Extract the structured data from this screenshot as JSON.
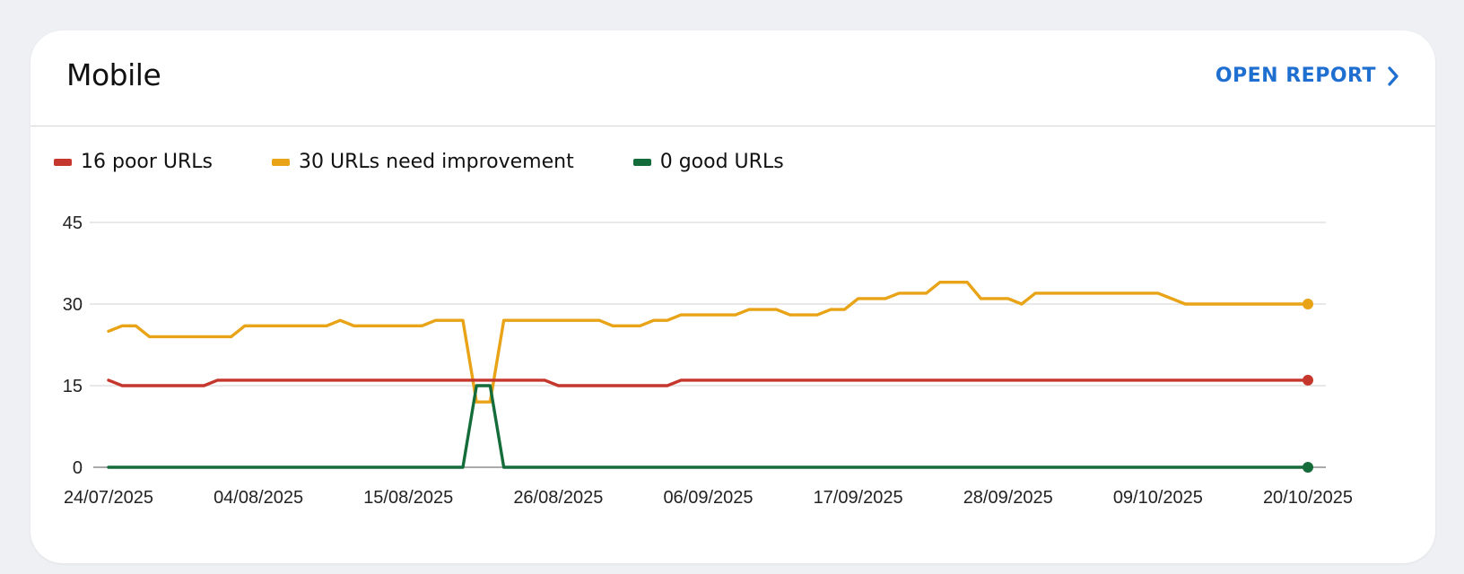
{
  "card": {
    "title": "Mobile",
    "open_report_label": "OPEN REPORT",
    "open_report_icon": "chevron-right-icon"
  },
  "legend": [
    {
      "label": "16 poor URLs",
      "color": "#c5372c"
    },
    {
      "label": "30 URLs need improvement",
      "color": "#e8a317"
    },
    {
      "label": "0 good URLs",
      "color": "#146c3a"
    }
  ],
  "colors": {
    "accent": "#1f6fd1",
    "poor": "#c5372c",
    "needs_improvement": "#e8a317",
    "good": "#146c3a",
    "gridline": "#d9d9d9"
  },
  "chart_data": {
    "type": "line",
    "title": "Mobile",
    "xlabel": "",
    "ylabel": "",
    "ylim": [
      0,
      45
    ],
    "yticks": [
      0,
      15,
      30,
      45
    ],
    "xticks": [
      "24/07/2025",
      "04/08/2025",
      "15/08/2025",
      "26/08/2025",
      "06/09/2025",
      "17/09/2025",
      "28/09/2025",
      "09/10/2025",
      "20/10/2025"
    ],
    "x_start": "24/07/2025",
    "x_end": "20/10/2025",
    "grid": true,
    "legend_position": "top-left",
    "day_index_note": "x values are day offsets from 24/07/2025 (0..88)",
    "series": [
      {
        "name": "16 poor URLs",
        "color": "#c5372c",
        "points": [
          [
            0,
            16
          ],
          [
            1,
            15
          ],
          [
            7,
            15
          ],
          [
            8,
            16
          ],
          [
            32,
            16
          ],
          [
            33,
            15
          ],
          [
            41,
            15
          ],
          [
            42,
            16
          ],
          [
            88,
            16
          ]
        ]
      },
      {
        "name": "30 URLs need improvement",
        "color": "#e8a317",
        "points": [
          [
            0,
            25
          ],
          [
            1,
            26
          ],
          [
            2,
            26
          ],
          [
            3,
            24
          ],
          [
            9,
            24
          ],
          [
            10,
            26
          ],
          [
            16,
            26
          ],
          [
            17,
            27
          ],
          [
            18,
            26
          ],
          [
            23,
            26
          ],
          [
            24,
            27
          ],
          [
            26,
            27
          ],
          [
            27,
            12
          ],
          [
            28,
            12
          ],
          [
            29,
            27
          ],
          [
            36,
            27
          ],
          [
            37,
            26
          ],
          [
            39,
            26
          ],
          [
            40,
            27
          ],
          [
            41,
            27
          ],
          [
            42,
            28
          ],
          [
            46,
            28
          ],
          [
            47,
            29
          ],
          [
            49,
            29
          ],
          [
            50,
            28
          ],
          [
            52,
            28
          ],
          [
            53,
            29
          ],
          [
            54,
            29
          ],
          [
            55,
            31
          ],
          [
            57,
            31
          ],
          [
            58,
            32
          ],
          [
            60,
            32
          ],
          [
            61,
            34
          ],
          [
            63,
            34
          ],
          [
            64,
            31
          ],
          [
            66,
            31
          ],
          [
            67,
            30
          ],
          [
            68,
            32
          ],
          [
            77,
            32
          ],
          [
            79,
            30
          ],
          [
            88,
            30
          ]
        ]
      },
      {
        "name": "0 good URLs",
        "color": "#146c3a",
        "points": [
          [
            0,
            0
          ],
          [
            26,
            0
          ],
          [
            27,
            15
          ],
          [
            28,
            15
          ],
          [
            29,
            0
          ],
          [
            88,
            0
          ]
        ]
      }
    ]
  }
}
